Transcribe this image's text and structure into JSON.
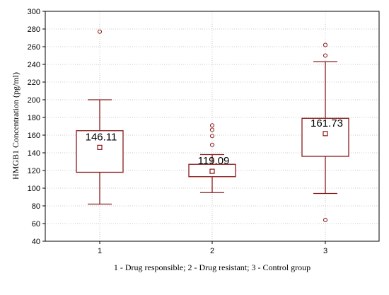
{
  "chart_data": {
    "type": "box",
    "xlabel": "1 - Drug responsible; 2 - Drug resistant; 3 - Control group",
    "ylabel": "HMGB1 Concentration (pg/ml)",
    "ylim": [
      40,
      300
    ],
    "yticks": [
      40,
      60,
      80,
      100,
      120,
      140,
      160,
      180,
      200,
      220,
      240,
      260,
      280,
      300
    ],
    "grid": true,
    "groups": [
      {
        "category": "1",
        "whisker_low": 82,
        "q1": 118,
        "q3": 165,
        "whisker_high": 200,
        "mean": 146.11,
        "mean_label": "146.11",
        "outliers": [
          277
        ]
      },
      {
        "category": "2",
        "whisker_low": 95,
        "q1": 113,
        "q3": 127,
        "whisker_high": 138,
        "mean": 119.09,
        "mean_label": "119.09",
        "outliers": [
          149,
          159,
          166,
          171
        ]
      },
      {
        "category": "3",
        "whisker_low": 94,
        "q1": 136,
        "q3": 179,
        "whisker_high": 243,
        "mean": 161.73,
        "mean_label": "161.73",
        "outliers": [
          64,
          250,
          262
        ]
      }
    ]
  }
}
